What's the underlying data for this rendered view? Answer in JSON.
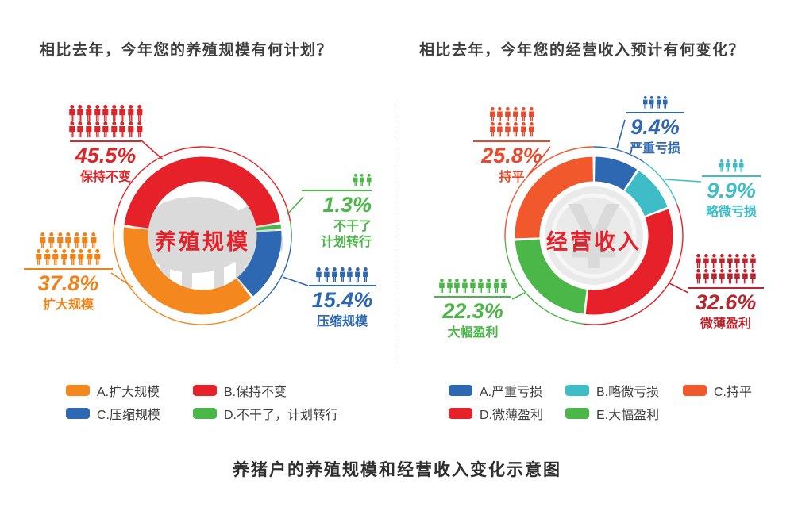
{
  "page": {
    "bottom_title": "养猪户的养殖规模和经营收入变化示意图"
  },
  "chart_data": [
    {
      "type": "donut",
      "title": "相比去年，今年您的养殖规模有何计划？",
      "center_label": "养殖规模",
      "center_icon": "pig-icon",
      "start_angle": 277,
      "legend_position": "bottom",
      "segments": [
        {
          "label": "保持不变",
          "pct": 45.5,
          "pct_label": "45.5%",
          "sub_label": "保持不变",
          "color": "#e62129",
          "label_color": "#df2428",
          "people_rows": [
            9,
            9
          ],
          "icon_scale": 1
        },
        {
          "label": "不干了，计划转行",
          "pct": 1.3,
          "pct_label": "1.3%",
          "sub_label": "不干了\n计划转行",
          "color": "#4bb749",
          "label_color": "#4bb749",
          "people_rows": [
            3
          ],
          "icon_scale": 0.78
        },
        {
          "label": "压缩规模",
          "pct": 15.4,
          "pct_label": "15.4%",
          "sub_label": "压缩规模",
          "color": "#2e68b2",
          "label_color": "#2e68b2",
          "people_rows": [
            7
          ],
          "icon_scale": 0.92
        },
        {
          "label": "扩大规模",
          "pct": 37.8,
          "pct_label": "37.8%",
          "sub_label": "扩大规模",
          "color": "#f5871f",
          "label_color": "#f0821a",
          "people_rows": [
            7,
            8
          ],
          "icon_scale": 1
        }
      ],
      "legend": [
        {
          "label": "A.扩大规模",
          "color": "#f5871f"
        },
        {
          "label": "B.保持不变",
          "color": "#e62129"
        },
        {
          "label": "C.压缩规模",
          "color": "#2e68b2"
        },
        {
          "label": "D.不干了，计划转行",
          "color": "#4bb749"
        }
      ]
    },
    {
      "type": "donut",
      "title": "相比去年，今年您的经营收入预计有何变化？",
      "center_label": "经营收入",
      "center_icon": "yuan-coin-icon",
      "coin_symbol": "¥",
      "start_angle": 0,
      "legend_position": "bottom",
      "segments": [
        {
          "label": "严重亏损",
          "pct": 9.4,
          "pct_label": "9.4%",
          "sub_label": "严重亏损",
          "color": "#2e68b2",
          "label_color": "#2e68b2",
          "people_rows": [
            4
          ],
          "icon_scale": 0.78
        },
        {
          "label": "略微亏损",
          "pct": 9.9,
          "pct_label": "9.9%",
          "sub_label": "略微亏损",
          "color": "#3ebdc8",
          "label_color": "#3ebdc8",
          "people_rows": [
            4
          ],
          "icon_scale": 0.78
        },
        {
          "label": "微薄盈利",
          "pct": 32.6,
          "pct_label": "32.6%",
          "sub_label": "微薄盈利",
          "color": "#e62129",
          "label_color": "#b9252e",
          "people_rows": [
            8,
            8
          ],
          "icon_scale": 0.92
        },
        {
          "label": "大幅盈利",
          "pct": 22.3,
          "pct_label": "22.3%",
          "sub_label": "大幅盈利",
          "color": "#4bb749",
          "label_color": "#4bb749",
          "people_rows": [
            9
          ],
          "icon_scale": 0.92
        },
        {
          "label": "持平",
          "pct": 25.8,
          "pct_label": "25.8%",
          "sub_label": "持平",
          "color": "#f1582b",
          "label_color": "#e84a2b",
          "people_rows": [
            6,
            6
          ],
          "icon_scale": 0.92
        }
      ],
      "legend": [
        {
          "label": "A.严重亏损",
          "color": "#2e68b2"
        },
        {
          "label": "B.略微亏损",
          "color": "#3ebdc8"
        },
        {
          "label": "C.持平",
          "color": "#f1582b"
        },
        {
          "label": "D.微薄盈利",
          "color": "#e62129"
        },
        {
          "label": "E.大幅盈利",
          "color": "#4bb749"
        }
      ]
    }
  ]
}
